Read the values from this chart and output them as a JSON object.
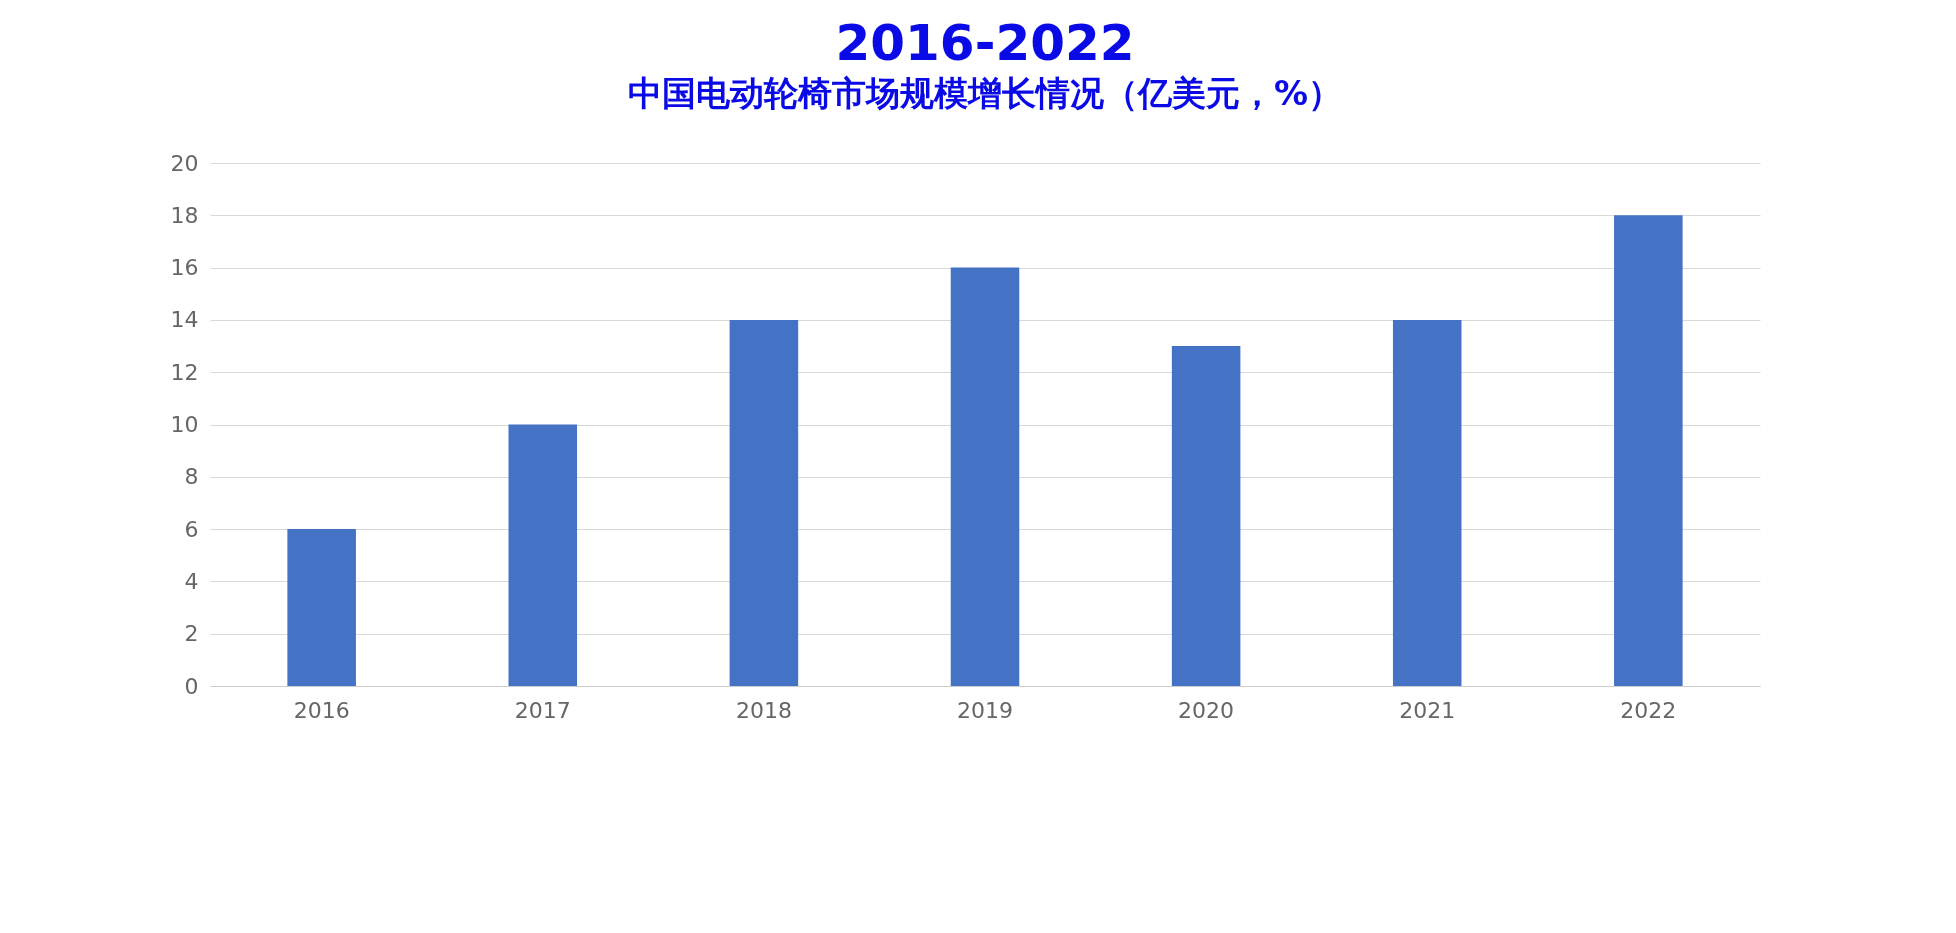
{
  "chart_data": {
    "type": "bar",
    "title": "2016-2022",
    "subtitle": "中国电动轮椅市场规模增长情况（亿美元，%）",
    "categories": [
      "2016",
      "2017",
      "2018",
      "2019",
      "2020",
      "2021",
      "2022"
    ],
    "values": [
      6,
      10,
      14,
      16,
      13,
      14,
      18
    ],
    "color": "#4472c4",
    "ylim": [
      0,
      20
    ],
    "yticks": [
      0,
      2,
      4,
      6,
      8,
      10,
      12,
      14,
      16,
      18,
      20
    ],
    "grid": "y"
  }
}
